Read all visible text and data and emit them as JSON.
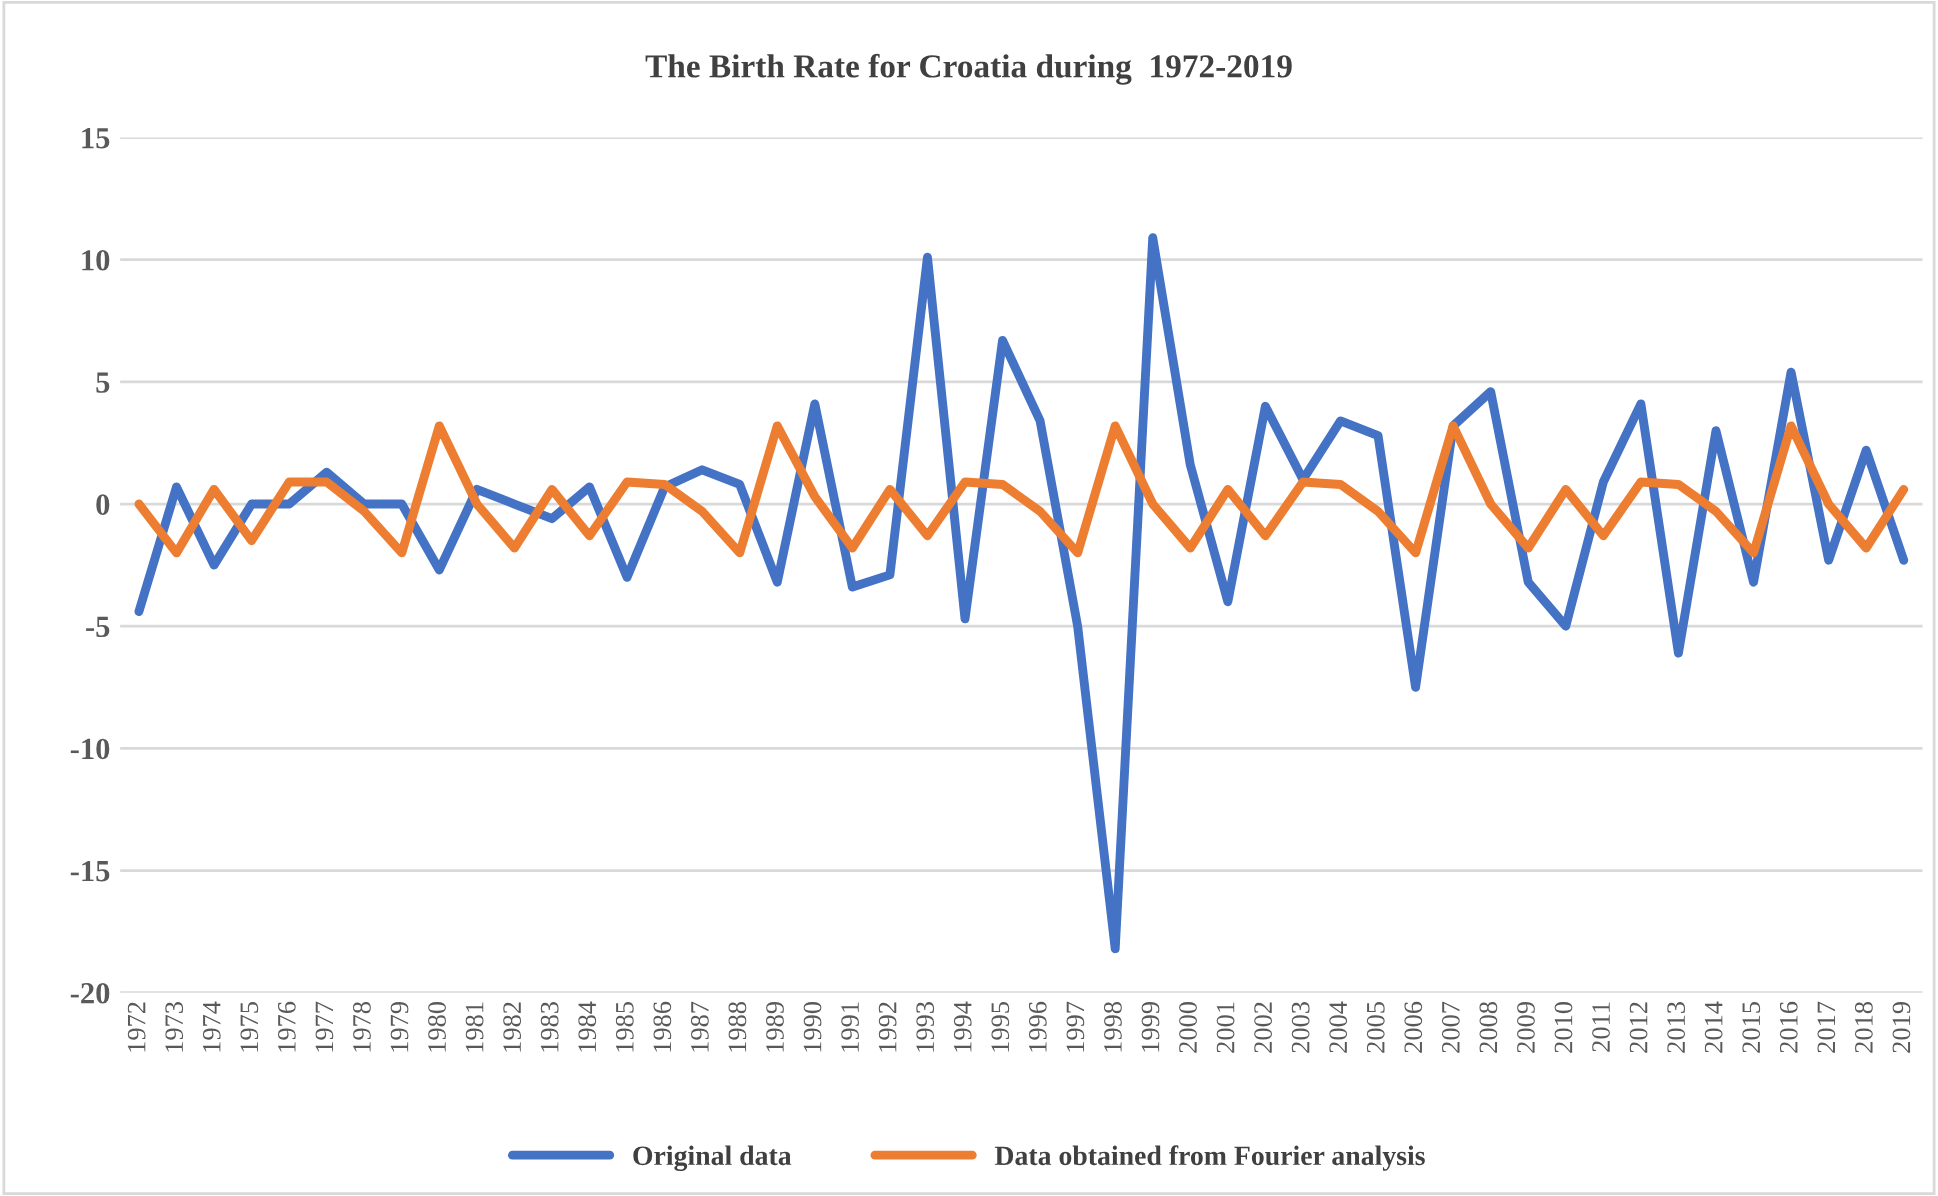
{
  "chart_data": {
    "type": "line",
    "title": "The Birth Rate for Croatia during  1972-2019",
    "categories": [
      "1972",
      "1973",
      "1974",
      "1975",
      "1976",
      "1977",
      "1978",
      "1979",
      "1980",
      "1981",
      "1982",
      "1983",
      "1984",
      "1985",
      "1986",
      "1987",
      "1988",
      "1989",
      "1990",
      "1991",
      "1992",
      "1993",
      "1994",
      "1995",
      "1996",
      "1997",
      "1998",
      "1999",
      "2000",
      "2001",
      "2002",
      "2003",
      "2004",
      "2005",
      "2006",
      "2007",
      "2008",
      "2009",
      "2010",
      "2011",
      "2012",
      "2013",
      "2014",
      "2015",
      "2016",
      "2017",
      "2018",
      "2019"
    ],
    "series": [
      {
        "name": "Original data",
        "color": "#4472c4",
        "values": [
          -4.4,
          0.7,
          -2.5,
          0,
          0,
          1.3,
          0,
          0,
          -2.7,
          0.6,
          0,
          -0.6,
          0.7,
          -3,
          0.7,
          1.4,
          0.8,
          -3.2,
          4.1,
          -3.4,
          -2.9,
          10.1,
          -4.7,
          6.7,
          3.4,
          -5,
          -18.2,
          10.9,
          1.6,
          -4,
          4,
          1,
          3.4,
          2.8,
          -7.5,
          3.2,
          4.6,
          -3.2,
          -5,
          0.9,
          4.1,
          -6.1,
          3,
          -3.2,
          5.4,
          -2.3,
          2.2,
          -2.3
        ]
      },
      {
        "name": "Data obtained from Fourier analysis",
        "color": "#ed7d31",
        "values": [
          0,
          -2,
          0.6,
          -1.5,
          0.9,
          0.9,
          -0.3,
          -2,
          3.2,
          0,
          -1.8,
          0.6,
          -1.3,
          0.9,
          0.8,
          -0.3,
          -2,
          3.2,
          0.3,
          -1.8,
          0.6,
          -1.3,
          0.9,
          0.8,
          -0.3,
          -2,
          3.2,
          0,
          -1.8,
          0.6,
          -1.3,
          0.9,
          0.8,
          -0.3,
          -2,
          3.2,
          0,
          -1.8,
          0.6,
          -1.3,
          0.9,
          0.8,
          -0.3,
          -2,
          3.2,
          0,
          -1.8,
          0.6
        ]
      }
    ],
    "ylim": [
      -20,
      15
    ],
    "yticks": [
      -20,
      -15,
      -10,
      -5,
      0,
      5,
      10,
      15
    ],
    "grid": "y",
    "legend": "bottom",
    "marker": "none",
    "line_style": "solid"
  }
}
